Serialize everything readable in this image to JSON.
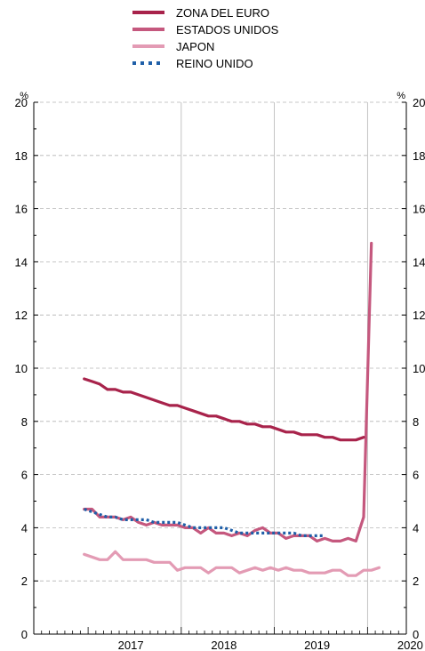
{
  "chart_data": {
    "type": "line",
    "unit_left": "%",
    "unit_right": "%",
    "ylim": [
      0,
      20
    ],
    "y_ticks": [
      "0",
      "2",
      "4",
      "6",
      "8",
      "10",
      "12",
      "14",
      "16",
      "18",
      "20"
    ],
    "x_tick_labels": [
      "2017",
      "2018",
      "2019",
      "2020"
    ],
    "grid": true,
    "legend_position": "top-center",
    "series": [
      {
        "name": "ZONA DEL EURO",
        "color": "#a8234b",
        "style": "solid",
        "start": "2016-12",
        "values": [
          9.6,
          9.5,
          9.4,
          9.2,
          9.2,
          9.1,
          9.1,
          9.0,
          8.9,
          8.8,
          8.7,
          8.6,
          8.6,
          8.5,
          8.4,
          8.3,
          8.2,
          8.2,
          8.1,
          8.0,
          8.0,
          7.9,
          7.9,
          7.8,
          7.8,
          7.7,
          7.6,
          7.6,
          7.5,
          7.5,
          7.5,
          7.4,
          7.4,
          7.3,
          7.3,
          7.3,
          7.4
        ]
      },
      {
        "name": "ESTADOS UNIDOS",
        "color": "#c5587e",
        "style": "solid",
        "start": "2016-12",
        "values": [
          4.7,
          4.7,
          4.4,
          4.4,
          4.4,
          4.3,
          4.4,
          4.2,
          4.1,
          4.2,
          4.1,
          4.1,
          4.1,
          4.0,
          4.0,
          3.8,
          4.0,
          3.8,
          3.8,
          3.7,
          3.8,
          3.7,
          3.9,
          4.0,
          3.8,
          3.8,
          3.6,
          3.7,
          3.7,
          3.7,
          3.5,
          3.6,
          3.5,
          3.5,
          3.6,
          3.5,
          4.4,
          14.7
        ]
      },
      {
        "name": "JAPON",
        "color": "#e39bb4",
        "style": "solid",
        "start": "2016-12",
        "values": [
          3.0,
          2.9,
          2.8,
          2.8,
          3.1,
          2.8,
          2.8,
          2.8,
          2.8,
          2.7,
          2.7,
          2.7,
          2.4,
          2.5,
          2.5,
          2.5,
          2.3,
          2.5,
          2.5,
          2.5,
          2.3,
          2.4,
          2.5,
          2.4,
          2.5,
          2.4,
          2.5,
          2.4,
          2.4,
          2.3,
          2.3,
          2.3,
          2.4,
          2.4,
          2.2,
          2.2,
          2.4,
          2.4,
          2.5
        ]
      },
      {
        "name": "REINO UNIDO",
        "color": "#1f5fa8",
        "style": "dotted",
        "start": "2016-12",
        "values": [
          4.7,
          4.6,
          4.5,
          4.4,
          4.4,
          4.3,
          4.3,
          4.3,
          4.3,
          4.2,
          4.2,
          4.2,
          4.2,
          4.1,
          4.0,
          4.0,
          4.0,
          4.0,
          4.0,
          3.9,
          3.8,
          3.8,
          3.8,
          3.8,
          3.8,
          3.8,
          3.8,
          3.8,
          3.7,
          3.7,
          3.7,
          3.7
        ]
      }
    ]
  }
}
